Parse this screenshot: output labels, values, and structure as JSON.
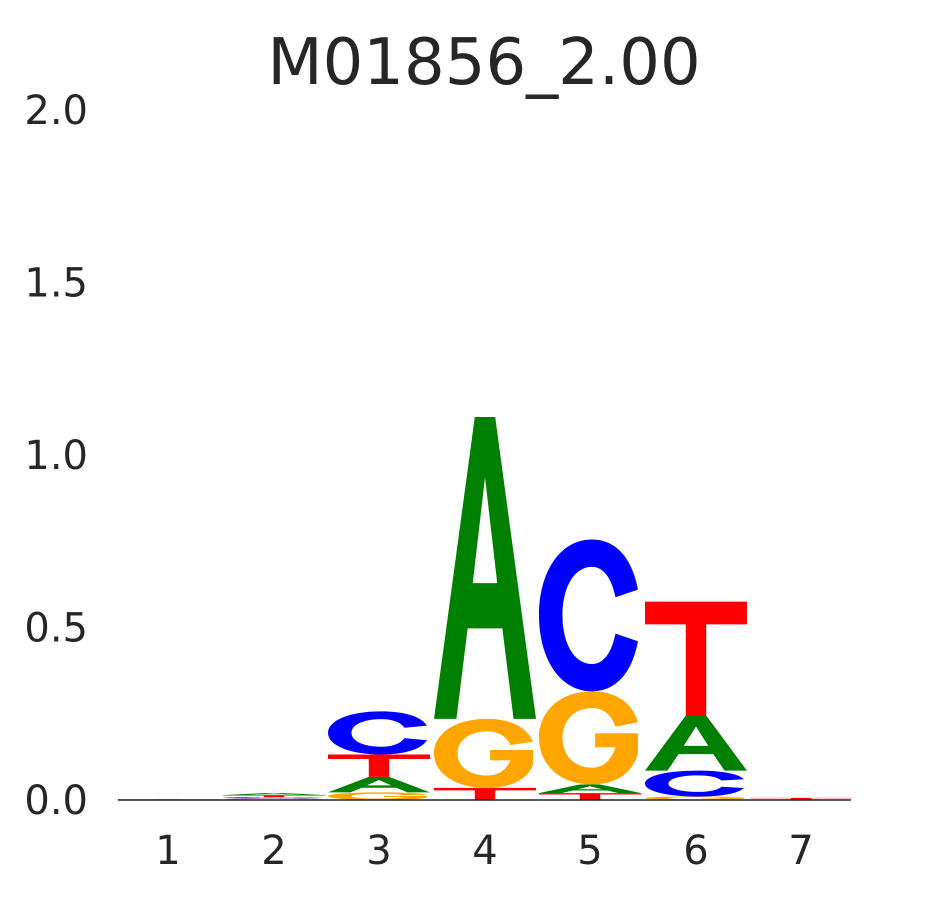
{
  "chart_data": {
    "type": "sequence-logo",
    "title": "M01856_2.00",
    "xlabel": "",
    "ylabel": "",
    "ylim": [
      0,
      2.0
    ],
    "y_ticks": [
      "0.0",
      "0.5",
      "1.0",
      "1.5",
      "2.0"
    ],
    "x_ticks": [
      "1",
      "2",
      "3",
      "4",
      "5",
      "6",
      "7"
    ],
    "grid": false,
    "legend": "none",
    "colors": {
      "A": "#008000",
      "C": "#0000ff",
      "G": "#ffa500",
      "T": "#ff0000"
    },
    "positions": [
      {
        "position": "1",
        "letters": [
          {
            "base": "A",
            "height": 0.001
          },
          {
            "base": "T",
            "height": 0.001
          }
        ]
      },
      {
        "position": "2",
        "letters": [
          {
            "base": "G",
            "height": 0.004
          },
          {
            "base": "C",
            "height": 0.004
          },
          {
            "base": "T",
            "height": 0.006
          },
          {
            "base": "A",
            "height": 0.006
          }
        ]
      },
      {
        "position": "3",
        "letters": [
          {
            "base": "G",
            "height": 0.022
          },
          {
            "base": "A",
            "height": 0.045
          },
          {
            "base": "T",
            "height": 0.065
          },
          {
            "base": "C",
            "height": 0.125
          }
        ]
      },
      {
        "position": "4",
        "letters": [
          {
            "base": "T",
            "height": 0.035
          },
          {
            "base": "G",
            "height": 0.2
          },
          {
            "base": "A",
            "height": 0.875
          }
        ]
      },
      {
        "position": "5",
        "letters": [
          {
            "base": "T",
            "height": 0.02
          },
          {
            "base": "A",
            "height": 0.025
          },
          {
            "base": "G",
            "height": 0.27
          },
          {
            "base": "C",
            "height": 0.44
          }
        ]
      },
      {
        "position": "6",
        "letters": [
          {
            "base": "G",
            "height": 0.01
          },
          {
            "base": "C",
            "height": 0.075
          },
          {
            "base": "A",
            "height": 0.16
          },
          {
            "base": "T",
            "height": 0.33
          }
        ]
      },
      {
        "position": "7",
        "letters": [
          {
            "base": "A",
            "height": 0.002
          },
          {
            "base": "T",
            "height": 0.004
          }
        ]
      }
    ]
  }
}
